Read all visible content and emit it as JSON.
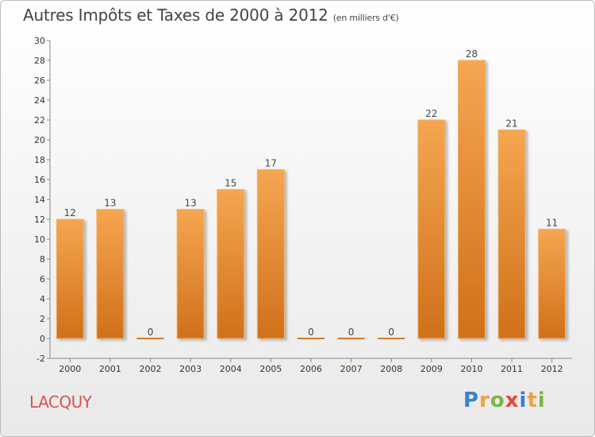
{
  "chart_data": {
    "type": "bar",
    "title": "Autres Impôts et Taxes de 2000 à 2012",
    "subtitle": "(en milliers d'€)",
    "categories": [
      "2000",
      "2001",
      "2002",
      "2003",
      "2004",
      "2005",
      "2006",
      "2007",
      "2008",
      "2009",
      "2010",
      "2011",
      "2012"
    ],
    "values": [
      12,
      13,
      0,
      13,
      15,
      17,
      0,
      0,
      0,
      22,
      28,
      21,
      11
    ],
    "ylim": [
      -2,
      30
    ],
    "yticks": [
      -2,
      0,
      2,
      4,
      6,
      8,
      10,
      12,
      14,
      16,
      18,
      20,
      22,
      24,
      26,
      28,
      30
    ],
    "grid": false,
    "bar_color": "#f0a050",
    "bar_color_dark": "#d57a25"
  },
  "place": "LACQUY",
  "logo": {
    "letters": [
      "P",
      "r",
      "o",
      "x",
      "i",
      "t",
      "i"
    ],
    "colors": [
      "#3a7fd0",
      "#f0a040",
      "#7ab648",
      "#e8463a",
      "#3a7fd0",
      "#f0a040",
      "#7ab648"
    ]
  }
}
